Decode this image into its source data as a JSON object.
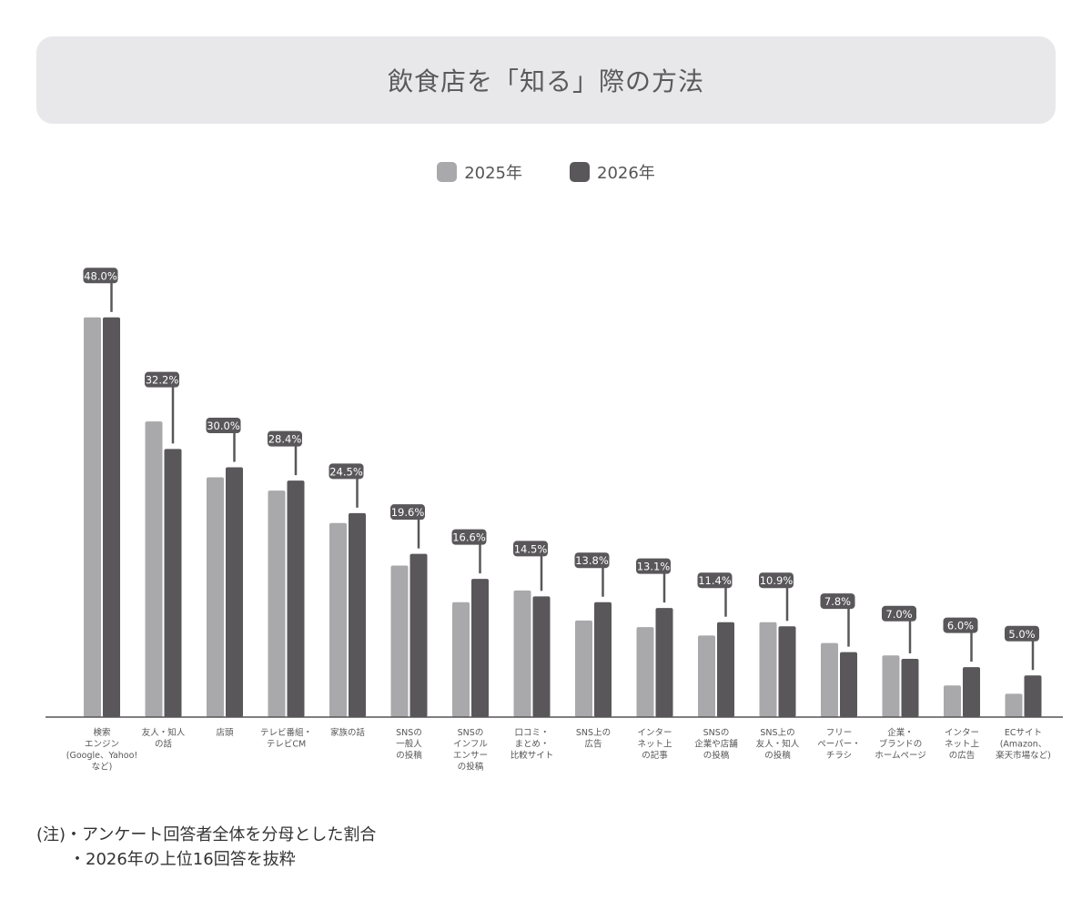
{
  "title": "飲食店を「知る」際の方法",
  "colors": {
    "series_2025": "#a9a8aa",
    "series_2026": "#59575a",
    "axis": "#555555",
    "label_bg": "#59575a",
    "label_text": "#ffffff",
    "title_bg": "#e8e7e9"
  },
  "notes": [
    "(注)・アンケート回答者全体を分母とした割合",
    "・2026年の上位16回答を抜粋"
  ],
  "chart_data": {
    "type": "bar",
    "title": "飲食店を「知る」際の方法",
    "legend_position": "top-center",
    "grid": false,
    "ylim": [
      0,
      48
    ],
    "categories": [
      [
        "検索",
        "エンジン",
        "(Google、Yahoo!",
        "など)"
      ],
      [
        "友人・知人",
        "の話"
      ],
      [
        "店頭"
      ],
      [
        "テレビ番組・",
        "テレビCM"
      ],
      [
        "家族の話"
      ],
      [
        "SNSの",
        "一般人",
        "の投稿"
      ],
      [
        "SNSの",
        "インフル",
        "エンサー",
        "の投稿"
      ],
      [
        "口コミ・",
        "まとめ・",
        "比較サイト"
      ],
      [
        "SNS上の",
        "広告"
      ],
      [
        "インター",
        "ネット上",
        "の記事"
      ],
      [
        "SNSの",
        "企業や店舗",
        "の投稿"
      ],
      [
        "SNS上の",
        "友人・知人",
        "の投稿"
      ],
      [
        "フリー",
        "ペーパー・",
        "チラシ"
      ],
      [
        "企業・",
        "ブランドの",
        "ホームページ"
      ],
      [
        "インター",
        "ネット上",
        "の広告"
      ],
      [
        "ECサイト",
        "(Amazon、",
        "楽天市場など)"
      ]
    ],
    "series": [
      {
        "name": "2025年",
        "values": [
          48.0,
          35.5,
          28.8,
          27.2,
          23.3,
          18.2,
          13.8,
          15.2,
          11.6,
          10.8,
          9.8,
          11.4,
          8.9,
          7.4,
          3.8,
          2.8
        ]
      },
      {
        "name": "2026年",
        "values": [
          48.0,
          32.2,
          30.0,
          28.4,
          24.5,
          19.6,
          16.6,
          14.5,
          13.8,
          13.1,
          11.4,
          10.9,
          7.8,
          7.0,
          6.0,
          5.0
        ]
      }
    ],
    "data_labels": [
      "48.0%",
      "32.2%",
      "30.0%",
      "28.4%",
      "24.5%",
      "19.6%",
      "16.6%",
      "14.5%",
      "13.8%",
      "13.1%",
      "11.4%",
      "10.9%",
      "7.8%",
      "7.0%",
      "6.0%",
      "5.0%"
    ]
  }
}
